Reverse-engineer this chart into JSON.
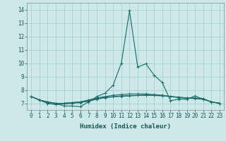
{
  "xlabel": "Humidex (Indice chaleur)",
  "xlim": [
    -0.5,
    23.5
  ],
  "ylim": [
    6.5,
    14.5
  ],
  "bg_color": "#cce8e8",
  "grid_color": "#aacece",
  "line_color": "#1a6b6b",
  "lines": [
    {
      "x": [
        0,
        1,
        2,
        3,
        4,
        5,
        6,
        7,
        8,
        9,
        10,
        11,
        12,
        13,
        14,
        15,
        16,
        17,
        18,
        19,
        20,
        21,
        22,
        23
      ],
      "y": [
        7.5,
        7.25,
        7.1,
        7.0,
        6.8,
        6.8,
        6.75,
        7.1,
        7.5,
        7.75,
        8.35,
        10.0,
        13.9,
        9.7,
        9.95,
        9.1,
        8.55,
        7.2,
        7.3,
        7.3,
        7.55,
        7.3,
        7.1,
        7.0
      ]
    },
    {
      "x": [
        0,
        1,
        2,
        3,
        4,
        5,
        6,
        7,
        8,
        9,
        10,
        11,
        12,
        13,
        14,
        15,
        16,
        17,
        18,
        19,
        20,
        21,
        22,
        23
      ],
      "y": [
        7.5,
        7.25,
        7.1,
        7.0,
        7.0,
        7.05,
        7.1,
        7.25,
        7.4,
        7.5,
        7.6,
        7.65,
        7.7,
        7.7,
        7.7,
        7.65,
        7.6,
        7.5,
        7.45,
        7.4,
        7.4,
        7.35,
        7.1,
        7.0
      ]
    },
    {
      "x": [
        0,
        1,
        2,
        3,
        4,
        5,
        6,
        7,
        8,
        9,
        10,
        11,
        12,
        13,
        14,
        15,
        16,
        17,
        18,
        19,
        20,
        21,
        22,
        23
      ],
      "y": [
        7.5,
        7.25,
        7.0,
        6.95,
        7.0,
        7.05,
        7.1,
        7.2,
        7.35,
        7.45,
        7.5,
        7.55,
        7.58,
        7.6,
        7.62,
        7.6,
        7.58,
        7.52,
        7.45,
        7.4,
        7.38,
        7.32,
        7.1,
        7.0
      ]
    },
    {
      "x": [
        0,
        1,
        2,
        3,
        4,
        5,
        6,
        7,
        8,
        9,
        10,
        11,
        12,
        13,
        14,
        15,
        16,
        17,
        18,
        19,
        20,
        21,
        22,
        23
      ],
      "y": [
        7.5,
        7.25,
        7.0,
        6.9,
        6.95,
        7.0,
        7.05,
        7.15,
        7.3,
        7.42,
        7.48,
        7.52,
        7.55,
        7.58,
        7.6,
        7.58,
        7.55,
        7.5,
        7.42,
        7.38,
        7.35,
        7.3,
        7.1,
        7.0
      ]
    }
  ],
  "xticks": [
    0,
    1,
    2,
    3,
    4,
    5,
    6,
    7,
    8,
    9,
    10,
    11,
    12,
    13,
    14,
    15,
    16,
    17,
    18,
    19,
    20,
    21,
    22,
    23
  ],
  "yticks": [
    7,
    8,
    9,
    10,
    11,
    12,
    13,
    14
  ],
  "tick_fontsize": 5.5,
  "label_fontsize": 6.5
}
